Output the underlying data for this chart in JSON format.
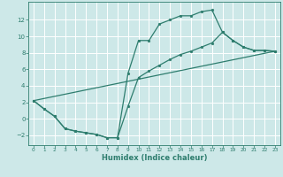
{
  "xlabel": "Humidex (Indice chaleur)",
  "background_color": "#cde8e8",
  "grid_color": "#ffffff",
  "line_color": "#2e7d6e",
  "xlim": [
    -0.5,
    23.5
  ],
  "ylim": [
    -3.2,
    14.2
  ],
  "xticks": [
    0,
    1,
    2,
    3,
    4,
    5,
    6,
    7,
    8,
    9,
    10,
    11,
    12,
    13,
    14,
    15,
    16,
    17,
    18,
    19,
    20,
    21,
    22,
    23
  ],
  "yticks": [
    -2,
    0,
    2,
    4,
    6,
    8,
    10,
    12
  ],
  "line1_x": [
    0,
    1,
    2,
    3,
    4,
    5,
    6,
    7,
    8,
    9,
    10,
    11,
    12,
    13,
    14,
    15,
    16,
    17,
    18,
    19,
    20,
    21,
    22,
    23
  ],
  "line1_y": [
    2.2,
    1.2,
    0.3,
    -1.2,
    -1.5,
    -1.7,
    -1.9,
    -2.3,
    -2.3,
    5.5,
    9.5,
    9.5,
    11.5,
    12.0,
    12.5,
    12.5,
    13.0,
    13.2,
    10.5,
    9.5,
    8.7,
    8.3,
    8.3,
    8.2
  ],
  "line2_x": [
    0,
    1,
    2,
    3,
    4,
    5,
    6,
    7,
    8,
    9,
    10,
    11,
    12,
    13,
    14,
    15,
    16,
    17,
    18,
    19,
    20,
    21,
    22,
    23
  ],
  "line2_y": [
    2.2,
    1.2,
    0.3,
    -1.2,
    -1.5,
    -1.7,
    -1.9,
    -2.3,
    -2.3,
    1.5,
    5.0,
    5.8,
    6.5,
    7.2,
    7.8,
    8.2,
    8.7,
    9.2,
    10.5,
    9.5,
    8.7,
    8.3,
    8.3,
    8.2
  ],
  "line3_x": [
    0,
    23
  ],
  "line3_y": [
    2.2,
    8.2
  ]
}
